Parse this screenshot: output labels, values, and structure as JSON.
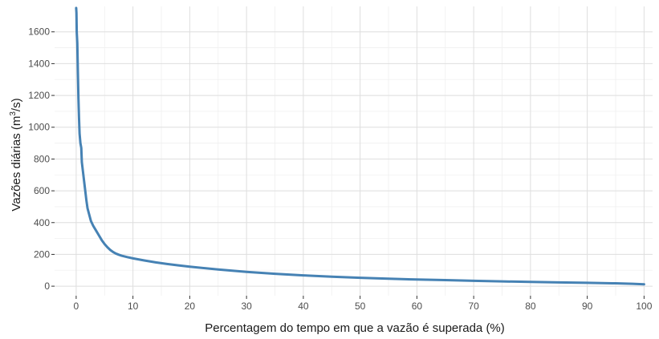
{
  "chart_data": {
    "type": "line",
    "title": "",
    "xlabel": "Percentagem do tempo em que a vazão é superada (%)",
    "ylabel_main": "Vazões diárias (m",
    "ylabel_sup": "3",
    "ylabel_end": "/s)",
    "xlim": [
      -3.8,
      101.5
    ],
    "ylim": [
      -60,
      1760
    ],
    "xticks": [
      0,
      10,
      20,
      30,
      40,
      50,
      60,
      70,
      80,
      90,
      100
    ],
    "xtick_labels": [
      "0",
      "10",
      "20",
      "30",
      "40",
      "50",
      "60",
      "70",
      "80",
      "90",
      "100"
    ],
    "yticks": [
      0,
      200,
      400,
      600,
      800,
      1000,
      1200,
      1400,
      1600
    ],
    "ytick_labels": [
      "0",
      "200",
      "400",
      "600",
      "800",
      "1000",
      "1200",
      "1400",
      "1600"
    ],
    "grid": true,
    "legend": "none",
    "line_color": "#4682b4",
    "series": [
      {
        "x": [
          0,
          0.05,
          0.1,
          0.2,
          0.3,
          0.4,
          0.5,
          0.6,
          0.75,
          0.9,
          1.0,
          1.2,
          1.4,
          1.6,
          1.8,
          2.0,
          2.3,
          2.6,
          3.0,
          3.5,
          4.0,
          4.5,
          5.0,
          5.5,
          6.0,
          6.5,
          7.0,
          7.5,
          8.0,
          9.0,
          10,
          12,
          14,
          16,
          18,
          20,
          25,
          30,
          35,
          40,
          45,
          50,
          55,
          60,
          65,
          70,
          75,
          80,
          85,
          90,
          95,
          98,
          100
        ],
        "y": [
          1750,
          1720,
          1600,
          1530,
          1350,
          1180,
          1060,
          960,
          900,
          870,
          780,
          720,
          660,
          600,
          540,
          490,
          450,
          410,
          380,
          350,
          320,
          290,
          265,
          245,
          228,
          215,
          205,
          198,
          192,
          183,
          175,
          162,
          150,
          140,
          131,
          123,
          105,
          90,
          78,
          68,
          60,
          53,
          47,
          42,
          38,
          34,
          30,
          27,
          24,
          21,
          18,
          15,
          12
        ]
      }
    ]
  }
}
